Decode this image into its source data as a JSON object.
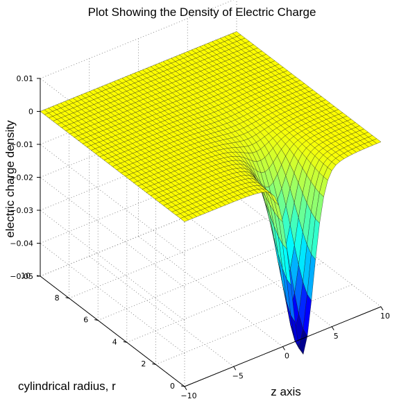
{
  "chart_data": {
    "type": "surface",
    "title": "Plot Showing the Density of Electric Charge",
    "zlabel": "electric charge density",
    "ylabel": "cylindrical radius, r",
    "xlabel": "z axis",
    "x_axis": {
      "name": "z axis",
      "range": [
        -10,
        10
      ],
      "ticks": [
        -10,
        -5,
        0,
        5,
        10
      ]
    },
    "y_axis": {
      "name": "cylindrical radius, r",
      "range": [
        0,
        10
      ],
      "ticks": [
        0,
        2,
        4,
        6,
        8,
        10
      ]
    },
    "z_axis": {
      "name": "electric charge density",
      "range": [
        -0.05,
        0.01
      ],
      "ticks": [
        0.01,
        0,
        -0.01,
        -0.02,
        -0.03,
        -0.04,
        -0.05
      ]
    },
    "x_tick_labels": [
      "−10",
      "−5",
      "0",
      "5",
      "10"
    ],
    "y_tick_labels": [
      "0",
      "2",
      "4",
      "6",
      "8",
      "10"
    ],
    "z_tick_labels": [
      "0.01",
      "0",
      "−0.01",
      "−0.02",
      "−0.03",
      "−0.04",
      "−0.05"
    ],
    "surface": {
      "peak_location": {
        "z": 2,
        "r": 0
      },
      "minimum_value": -0.051,
      "far_field_value": 0.0
    },
    "grid": true,
    "colormap": [
      "#00008f",
      "#0000ff",
      "#00ffff",
      "#ffff00"
    ]
  }
}
